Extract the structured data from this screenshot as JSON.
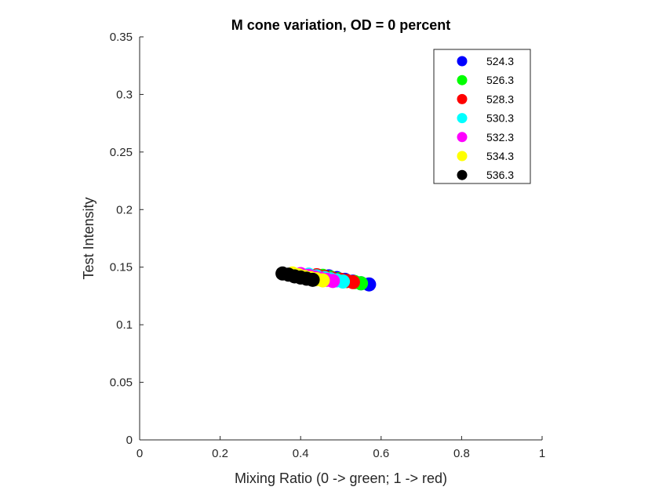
{
  "chart_data": {
    "type": "scatter",
    "title": "M cone variation, OD = 0 percent",
    "xlabel": "Mixing Ratio (0 -> green; 1 -> red)",
    "ylabel": "Test Intensity",
    "xlim": [
      0,
      1
    ],
    "ylim": [
      0,
      0.35
    ],
    "xticks": [
      0,
      0.2,
      0.4,
      0.6,
      0.8,
      1
    ],
    "xtick_labels": [
      "0",
      "0.2",
      "0.4",
      "0.6",
      "0.8",
      "1"
    ],
    "yticks": [
      0,
      0.05,
      0.1,
      0.15,
      0.2,
      0.25,
      0.3,
      0.35
    ],
    "ytick_labels": [
      "0",
      "0.05",
      "0.1",
      "0.15",
      "0.2",
      "0.25",
      "0.3",
      "0.35"
    ],
    "grid": false,
    "legend_position": "top-right",
    "series": [
      {
        "name": "524.3",
        "color": "#0000ff",
        "x": [
          0.47,
          0.49,
          0.51,
          0.53,
          0.55,
          0.57
        ],
        "y": [
          0.142,
          0.1405,
          0.139,
          0.1375,
          0.136,
          0.135
        ]
      },
      {
        "name": "526.3",
        "color": "#00ff00",
        "x": [
          0.455,
          0.475,
          0.495,
          0.515,
          0.535,
          0.55
        ],
        "y": [
          0.1425,
          0.141,
          0.1395,
          0.138,
          0.137,
          0.136
        ]
      },
      {
        "name": "528.3",
        "color": "#ff0000",
        "x": [
          0.44,
          0.46,
          0.48,
          0.5,
          0.515,
          0.53
        ],
        "y": [
          0.143,
          0.1415,
          0.14,
          0.139,
          0.138,
          0.137
        ]
      },
      {
        "name": "530.3",
        "color": "#00ffff",
        "x": [
          0.42,
          0.44,
          0.46,
          0.475,
          0.49,
          0.505
        ],
        "y": [
          0.1435,
          0.142,
          0.1405,
          0.1395,
          0.1385,
          0.1375
        ]
      },
      {
        "name": "532.3",
        "color": "#ff00ff",
        "x": [
          0.4,
          0.42,
          0.435,
          0.45,
          0.465,
          0.48
        ],
        "y": [
          0.144,
          0.1425,
          0.141,
          0.14,
          0.139,
          0.138
        ]
      },
      {
        "name": "534.3",
        "color": "#ffff00",
        "x": [
          0.38,
          0.395,
          0.41,
          0.425,
          0.44,
          0.455
        ],
        "y": [
          0.1445,
          0.143,
          0.1415,
          0.1405,
          0.1395,
          0.1385
        ]
      },
      {
        "name": "536.3",
        "color": "#000000",
        "x": [
          0.355,
          0.37,
          0.385,
          0.4,
          0.415,
          0.43
        ],
        "y": [
          0.1445,
          0.1435,
          0.142,
          0.141,
          0.14,
          0.139
        ]
      }
    ]
  }
}
